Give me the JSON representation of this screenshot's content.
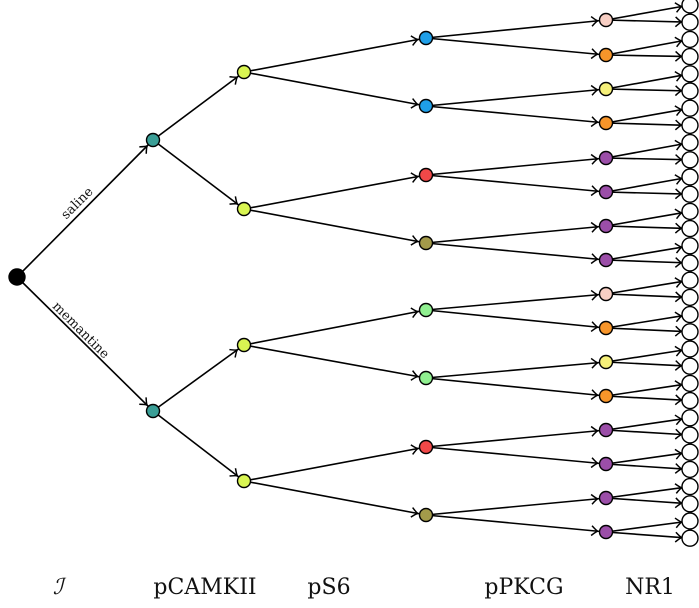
{
  "edge_labels": {
    "upper": "saline",
    "lower": "memantine"
  },
  "column_labels": [
    "ℐ",
    "pCAMKII",
    "pS6",
    "pPKCG",
    "NR1"
  ],
  "colors": {
    "root": "#000000",
    "level1": "#3a9e96",
    "level2": "#d9f552",
    "level3": [
      "#1f9fe8",
      "#1f9fe8",
      "#f04848",
      "#a39a4a",
      "#90f090",
      "#90f090",
      "#f04848",
      "#a39a4a"
    ],
    "level4": [
      "#f8cfc4",
      "#f7952a",
      "#f6f07a",
      "#f7952a",
      "#9b4ea8",
      "#9b4ea8",
      "#9b4ea8",
      "#9b4ea8",
      "#f8cfc4",
      "#f7952a",
      "#f6f07a",
      "#f7952a",
      "#9b4ea8",
      "#9b4ea8",
      "#9b4ea8",
      "#9b4ea8"
    ],
    "leaf": "#ffffff"
  }
}
